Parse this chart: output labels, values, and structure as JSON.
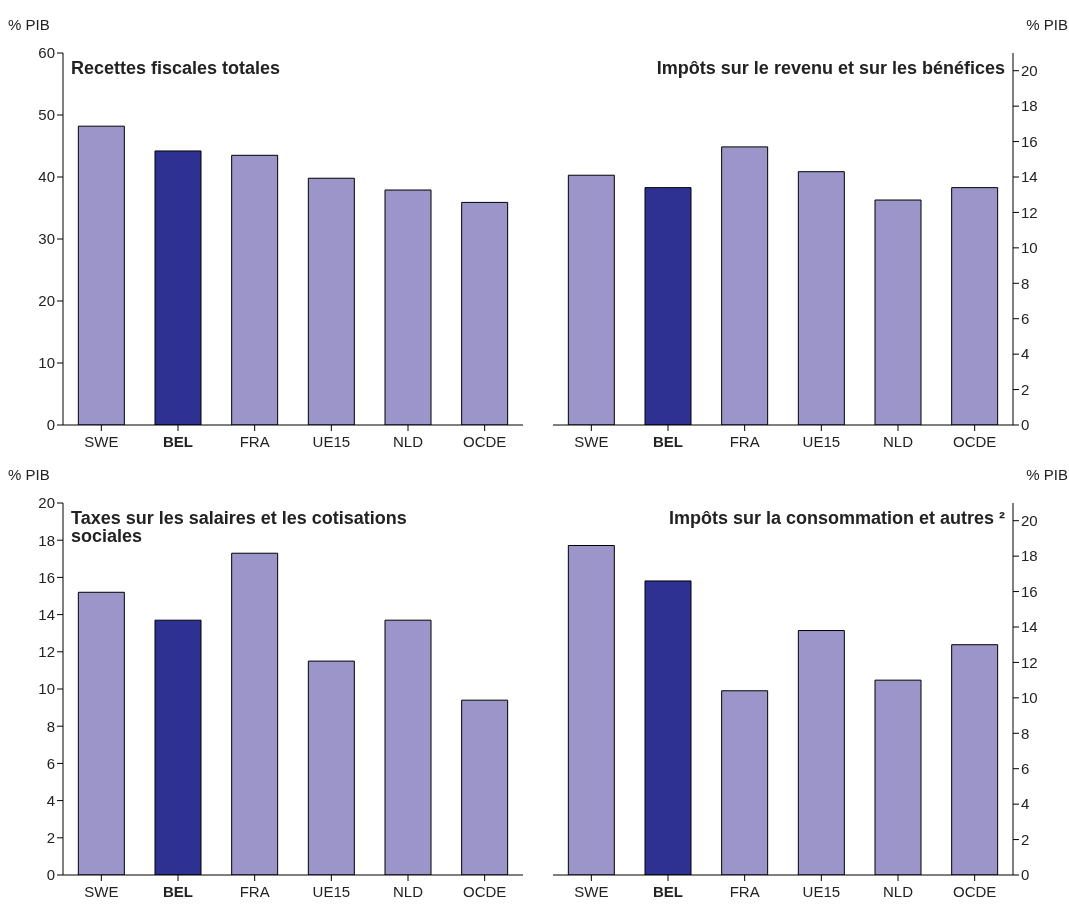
{
  "chart_data": [
    {
      "type": "bar",
      "title": "Recettes fiscales totales",
      "ylabel": "% PIB",
      "categories": [
        "SWE",
        "BEL",
        "FRA",
        "UE15",
        "NLD",
        "OCDE"
      ],
      "ylim": [
        0,
        60
      ],
      "yticks": [
        0,
        10,
        20,
        30,
        40,
        50,
        60
      ],
      "series": [
        {
          "values": [
            48.2,
            44.2,
            43.5,
            39.8,
            37.9,
            35.9
          ],
          "colors": [
            "#9b95c9",
            "#2e3192",
            "#9b95c9",
            "#9b95c9",
            "#9b95c9",
            "#9b95c9"
          ]
        }
      ]
    },
    {
      "type": "bar",
      "title": "Impôts sur le revenu et sur les bénéfices",
      "y2label": "% PIB",
      "categories": [
        "SWE",
        "BEL",
        "FRA",
        "UE15",
        "NLD",
        "OCDE"
      ],
      "y2lim": [
        0,
        21
      ],
      "y2ticks": [
        0,
        2,
        4,
        6,
        8,
        10,
        12,
        14,
        16,
        18,
        20
      ],
      "series": [
        {
          "axis": "y2",
          "values": [
            14.1,
            13.4,
            15.7,
            14.3,
            12.7,
            13.4
          ],
          "colors": [
            "#9b95c9",
            "#2e3192",
            "#9b95c9",
            "#9b95c9",
            "#9b95c9",
            "#9b95c9"
          ]
        }
      ]
    },
    {
      "type": "bar",
      "title": "Taxes sur les salaires et les cotisations sociales",
      "ylabel": "% PIB",
      "categories": [
        "SWE",
        "BEL",
        "FRA",
        "UE15",
        "NLD",
        "OCDE"
      ],
      "ylim": [
        0,
        20
      ],
      "yticks": [
        0,
        2,
        4,
        6,
        8,
        10,
        12,
        14,
        16,
        18,
        20
      ],
      "series": [
        {
          "values": [
            15.2,
            13.7,
            17.3,
            11.5,
            13.7,
            9.4
          ],
          "colors": [
            "#9b95c9",
            "#2e3192",
            "#9b95c9",
            "#9b95c9",
            "#9b95c9",
            "#9b95c9"
          ]
        }
      ]
    },
    {
      "type": "bar",
      "title": "Impôts sur la consommation et autres ²",
      "y2label": "% PIB",
      "categories": [
        "SWE",
        "BEL",
        "FRA",
        "UE15",
        "NLD",
        "OCDE"
      ],
      "y2lim": [
        0,
        21
      ],
      "y2ticks": [
        0,
        2,
        4,
        6,
        8,
        10,
        12,
        14,
        16,
        18,
        20
      ],
      "series": [
        {
          "axis": "y2",
          "values": [
            18.6,
            16.6,
            10.4,
            13.8,
            11.0,
            13.0
          ],
          "colors": [
            "#9b95c9",
            "#2e3192",
            "#9b95c9",
            "#9b95c9",
            "#9b95c9",
            "#9b95c9"
          ]
        }
      ]
    }
  ]
}
